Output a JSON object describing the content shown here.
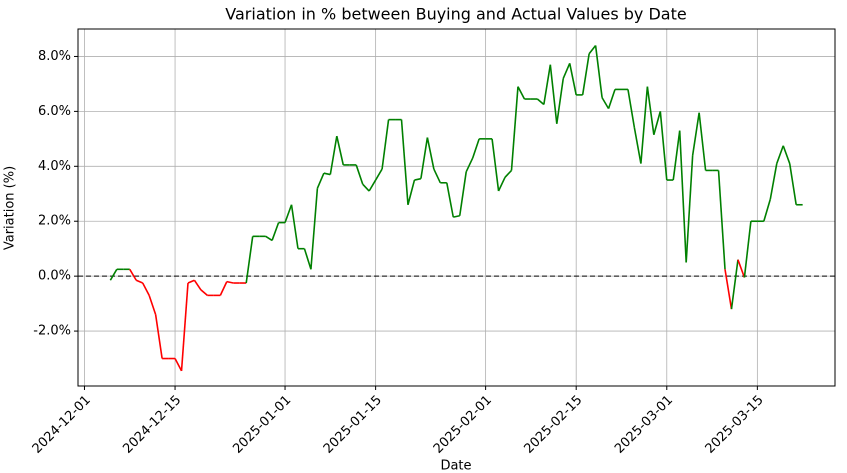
{
  "chart_data": {
    "type": "line",
    "title": "Variation in % between Buying and Actual Values by Date",
    "x_label": "Date",
    "y_label": "Variation (%)",
    "x": [
      "2024-12-05",
      "2024-12-06",
      "2024-12-07",
      "2024-12-08",
      "2024-12-09",
      "2024-12-10",
      "2024-12-11",
      "2024-12-12",
      "2024-12-13",
      "2024-12-14",
      "2024-12-15",
      "2024-12-16",
      "2024-12-17",
      "2024-12-18",
      "2024-12-19",
      "2024-12-20",
      "2024-12-21",
      "2024-12-22",
      "2024-12-23",
      "2024-12-24",
      "2024-12-25",
      "2024-12-26",
      "2024-12-27",
      "2024-12-28",
      "2024-12-29",
      "2024-12-30",
      "2024-12-31",
      "2025-01-01",
      "2025-01-02",
      "2025-01-03",
      "2025-01-04",
      "2025-01-05",
      "2025-01-06",
      "2025-01-07",
      "2025-01-08",
      "2025-01-09",
      "2025-01-10",
      "2025-01-11",
      "2025-01-12",
      "2025-01-13",
      "2025-01-14",
      "2025-01-15",
      "2025-01-16",
      "2025-01-17",
      "2025-01-18",
      "2025-01-19",
      "2025-01-20",
      "2025-01-21",
      "2025-01-22",
      "2025-01-23",
      "2025-01-24",
      "2025-01-25",
      "2025-01-26",
      "2025-01-27",
      "2025-01-28",
      "2025-01-29",
      "2025-01-30",
      "2025-01-31",
      "2025-02-01",
      "2025-02-02",
      "2025-02-03",
      "2025-02-04",
      "2025-02-05",
      "2025-02-06",
      "2025-02-07",
      "2025-02-08",
      "2025-02-09",
      "2025-02-10",
      "2025-02-11",
      "2025-02-12",
      "2025-02-13",
      "2025-02-14",
      "2025-02-15",
      "2025-02-16",
      "2025-02-17",
      "2025-02-18",
      "2025-02-19",
      "2025-02-20",
      "2025-02-21",
      "2025-02-22",
      "2025-02-23",
      "2025-02-24",
      "2025-02-25",
      "2025-02-26",
      "2025-02-27",
      "2025-02-28",
      "2025-03-01",
      "2025-03-02",
      "2025-03-03",
      "2025-03-04",
      "2025-03-05",
      "2025-03-06",
      "2025-03-07",
      "2025-03-08",
      "2025-03-09",
      "2025-03-10",
      "2025-03-11",
      "2025-03-12",
      "2025-03-13",
      "2025-03-14",
      "2025-03-15",
      "2025-03-16",
      "2025-03-17",
      "2025-03-18",
      "2025-03-19",
      "2025-03-20",
      "2025-03-21",
      "2025-03-22"
    ],
    "values": [
      -0.15,
      0.25,
      0.25,
      0.25,
      -0.15,
      -0.25,
      -0.7,
      -1.4,
      -3.0,
      -3.0,
      -3.0,
      -3.45,
      -0.25,
      -0.15,
      -0.5,
      -0.7,
      -0.7,
      -0.7,
      -0.2,
      -0.25,
      -0.25,
      -0.25,
      1.45,
      1.45,
      1.45,
      1.3,
      1.95,
      1.95,
      2.6,
      1.0,
      1.0,
      0.25,
      3.2,
      3.75,
      3.7,
      5.1,
      4.05,
      4.05,
      4.05,
      3.35,
      3.1,
      3.5,
      3.9,
      5.7,
      5.7,
      5.7,
      2.6,
      3.5,
      3.55,
      5.05,
      3.9,
      3.4,
      3.4,
      2.15,
      2.2,
      3.8,
      4.3,
      5.0,
      5.0,
      5.0,
      3.1,
      3.6,
      3.85,
      6.9,
      6.45,
      6.45,
      6.45,
      6.25,
      7.7,
      5.55,
      7.2,
      7.75,
      6.6,
      6.6,
      8.1,
      8.4,
      6.5,
      6.1,
      6.8,
      6.8,
      6.8,
      5.4,
      4.1,
      6.9,
      5.15,
      6.0,
      3.5,
      3.5,
      5.3,
      0.5,
      4.4,
      5.95,
      3.85,
      3.85,
      3.85,
      0.25,
      -1.2,
      0.6,
      -0.05,
      2.0,
      2.0,
      2.0,
      2.8,
      4.1,
      4.75,
      4.1,
      2.6,
      2.6
    ],
    "positive_color": "#008000",
    "negative_color": "#ff0000",
    "hline": 0,
    "xlim": [
      "2024-11-30",
      "2025-03-27"
    ],
    "xticks": [
      "2024-12-01",
      "2024-12-15",
      "2025-01-01",
      "2025-01-15",
      "2025-02-01",
      "2025-02-15",
      "2025-03-01",
      "2025-03-15"
    ],
    "ylim": [
      -4,
      9
    ],
    "yticks": [
      {
        "value": -2,
        "label": "-2.0%"
      },
      {
        "value": 0,
        "label": "0.0%"
      },
      {
        "value": 2,
        "label": "2.0%"
      },
      {
        "value": 4,
        "label": "4.0%"
      },
      {
        "value": 6,
        "label": "6.0%"
      },
      {
        "value": 8,
        "label": "8.0%"
      }
    ],
    "grid": true
  }
}
